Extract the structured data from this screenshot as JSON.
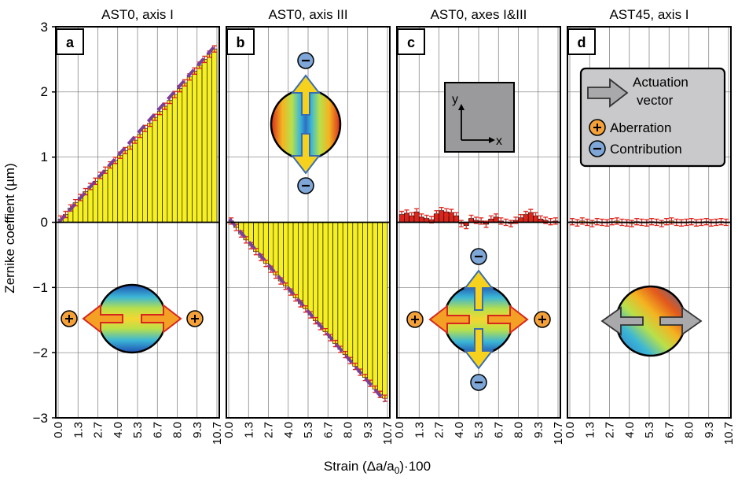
{
  "chart_data": {
    "type": "bar",
    "ylabel": "Zernike coeffient (µm)",
    "xlabel": "Strain (Δa/a0)·100",
    "xlabel_parts": {
      "main": "Strain (Δa/a",
      "sub": "0",
      "tail": ")·100"
    },
    "ylim": [
      -3,
      3
    ],
    "yticks": [
      "−3",
      "−2",
      "−1",
      "0",
      "1",
      "2",
      "3"
    ],
    "xticks": [
      "0.0",
      "1.3",
      "2.7",
      "4.0",
      "5.3",
      "6.7",
      "8.0",
      "9.3",
      "10.7"
    ],
    "grid": true,
    "panels": [
      {
        "id": "a",
        "title": "AST0, axis I",
        "bar_color": "#f6ef22",
        "values": [
          0.05,
          0.12,
          0.22,
          0.3,
          0.38,
          0.47,
          0.55,
          0.63,
          0.72,
          0.8,
          0.88,
          0.95,
          1.03,
          1.1,
          1.17,
          1.26,
          1.35,
          1.44,
          1.52,
          1.61,
          1.7,
          1.78,
          1.87,
          1.96,
          2.05,
          2.14,
          2.23,
          2.32,
          2.41,
          2.5,
          2.58,
          2.66
        ],
        "fit": [
          0.0,
          2.7
        ],
        "inset": "single-axis aberration with two outward actuation arrows along x, each marked Aberration (+)"
      },
      {
        "id": "b",
        "title": "AST0, axis III",
        "bar_color": "#f6ef22",
        "values": [
          0.02,
          -0.08,
          -0.18,
          -0.27,
          -0.36,
          -0.45,
          -0.54,
          -0.63,
          -0.72,
          -0.81,
          -0.9,
          -0.98,
          -1.07,
          -1.16,
          -1.25,
          -1.33,
          -1.42,
          -1.51,
          -1.6,
          -1.68,
          -1.77,
          -1.86,
          -1.95,
          -2.03,
          -2.12,
          -2.21,
          -2.3,
          -2.38,
          -2.47,
          -2.56,
          -2.64,
          -2.7
        ],
        "fit": [
          0.05,
          -2.75
        ],
        "inset": "single-axis contribution with two outward actuation arrows along y, each marked Contribution (−)"
      },
      {
        "id": "c",
        "title": "AST0, axes I&III",
        "bar_color": "#d7261e",
        "values": [
          0.12,
          0.14,
          0.1,
          0.16,
          0.08,
          0.06,
          0.04,
          0.13,
          0.18,
          0.16,
          0.15,
          0.1,
          -0.02,
          -0.05,
          0.06,
          0.03,
          0.02,
          -0.03,
          0.05,
          0.08,
          0.02,
          0.0,
          -0.02,
          0.03,
          0.07,
          0.12,
          0.15,
          0.1,
          0.05,
          0.03,
          0.01,
          0.02
        ],
        "inset": "coordinate system box (x, y) and four actuation arrows along x (+) and y (−)"
      },
      {
        "id": "d",
        "title": "AST45, axis I",
        "bar_color": "#f6ef22",
        "values": [
          0.01,
          -0.01,
          0.02,
          0.0,
          -0.02,
          0.01,
          0.0,
          -0.01,
          0.01,
          0.02,
          0.0,
          -0.01,
          -0.02,
          0.01,
          0.0,
          -0.01,
          0.01,
          0.0,
          -0.02,
          0.01,
          0.02,
          0.0,
          -0.01,
          0.0,
          0.01,
          -0.01,
          0.0,
          0.01,
          -0.01,
          0.0,
          0.01,
          0.0
        ],
        "inset": "diagonal aberration pattern with horizontal gray actuation arrows"
      }
    ],
    "legend": {
      "placement": "top-right of panel d",
      "items": [
        "Actuation",
        "vector",
        "Aberration",
        "Contribution"
      ]
    },
    "colors": {
      "bar_yellow": "#f6ef22",
      "bar_red": "#d7261e",
      "error_bar": "#e2231a",
      "fit_line": "#7b3f9a",
      "plus_marker": "#f5a13a",
      "minus_marker": "#7ea7d8",
      "legend_bg": "#c9c9cb"
    }
  }
}
